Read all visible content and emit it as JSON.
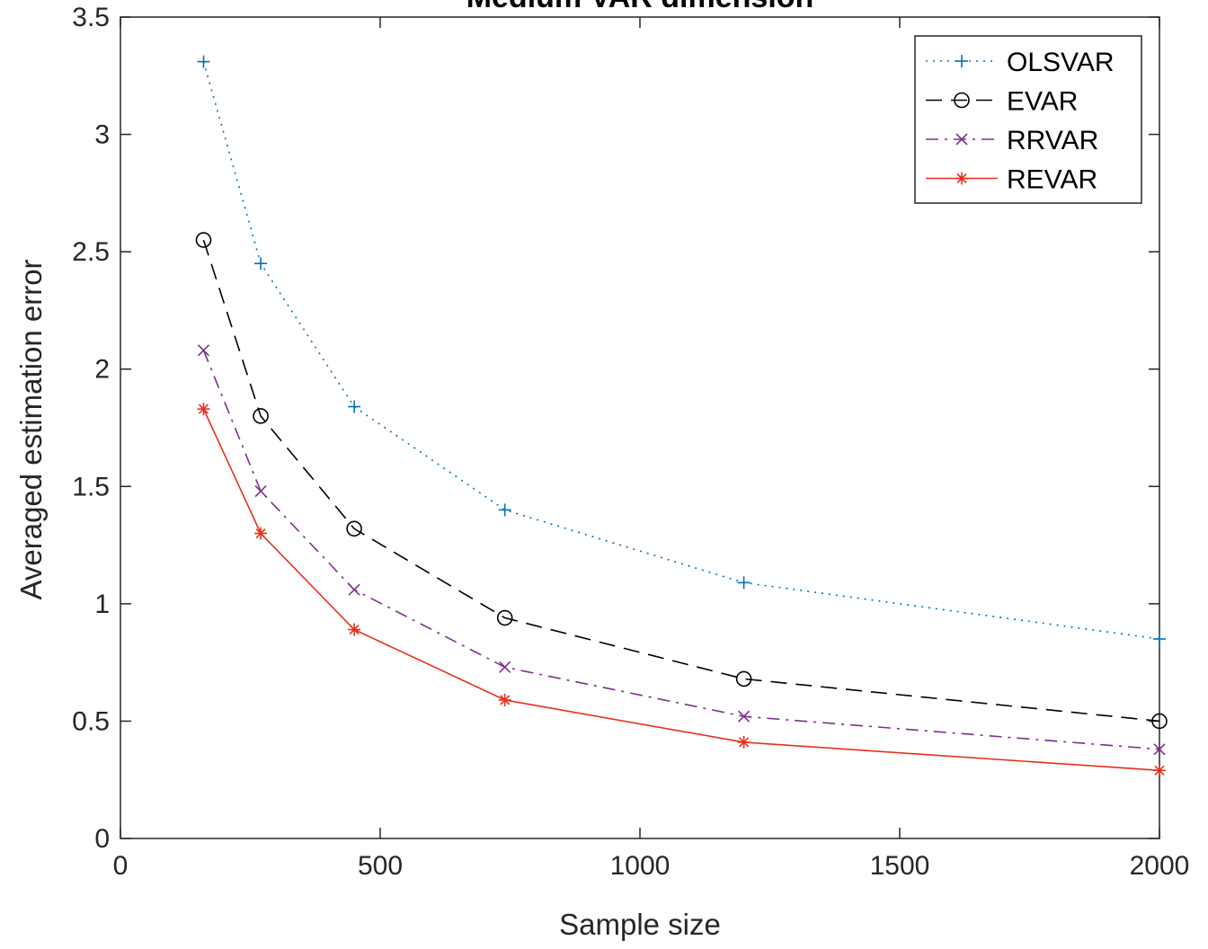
{
  "chart_data": {
    "type": "line",
    "title": "Medium VAR dimension",
    "xlabel": "Sample size",
    "ylabel": "Averaged estimation error",
    "xlim": [
      0,
      2000
    ],
    "ylim": [
      0,
      3.5
    ],
    "x_ticks": [
      0,
      500,
      1000,
      1500,
      2000
    ],
    "y_ticks": [
      0,
      0.5,
      1,
      1.5,
      2,
      2.5,
      3,
      3.5
    ],
    "grid": false,
    "legend_position": "top-right",
    "x": [
      160,
      270,
      450,
      740,
      1200,
      2000
    ],
    "series": [
      {
        "name": "OLSVAR",
        "values": [
          3.31,
          2.45,
          1.84,
          1.4,
          1.09,
          0.85
        ],
        "color": "#0072BD",
        "marker": "plus",
        "line": "dotted"
      },
      {
        "name": "EVAR",
        "values": [
          2.55,
          1.8,
          1.32,
          0.94,
          0.68,
          0.5
        ],
        "color": "#000000",
        "marker": "circle",
        "line": "dashed"
      },
      {
        "name": "RRVAR",
        "values": [
          2.08,
          1.48,
          1.06,
          0.73,
          0.52,
          0.38
        ],
        "color": "#7E2F8E",
        "marker": "x",
        "line": "dashdot"
      },
      {
        "name": "REVAR",
        "values": [
          1.83,
          1.3,
          0.89,
          0.59,
          0.41,
          0.29
        ],
        "color": "#E8301C",
        "marker": "asterisk",
        "line": "solid"
      }
    ]
  }
}
